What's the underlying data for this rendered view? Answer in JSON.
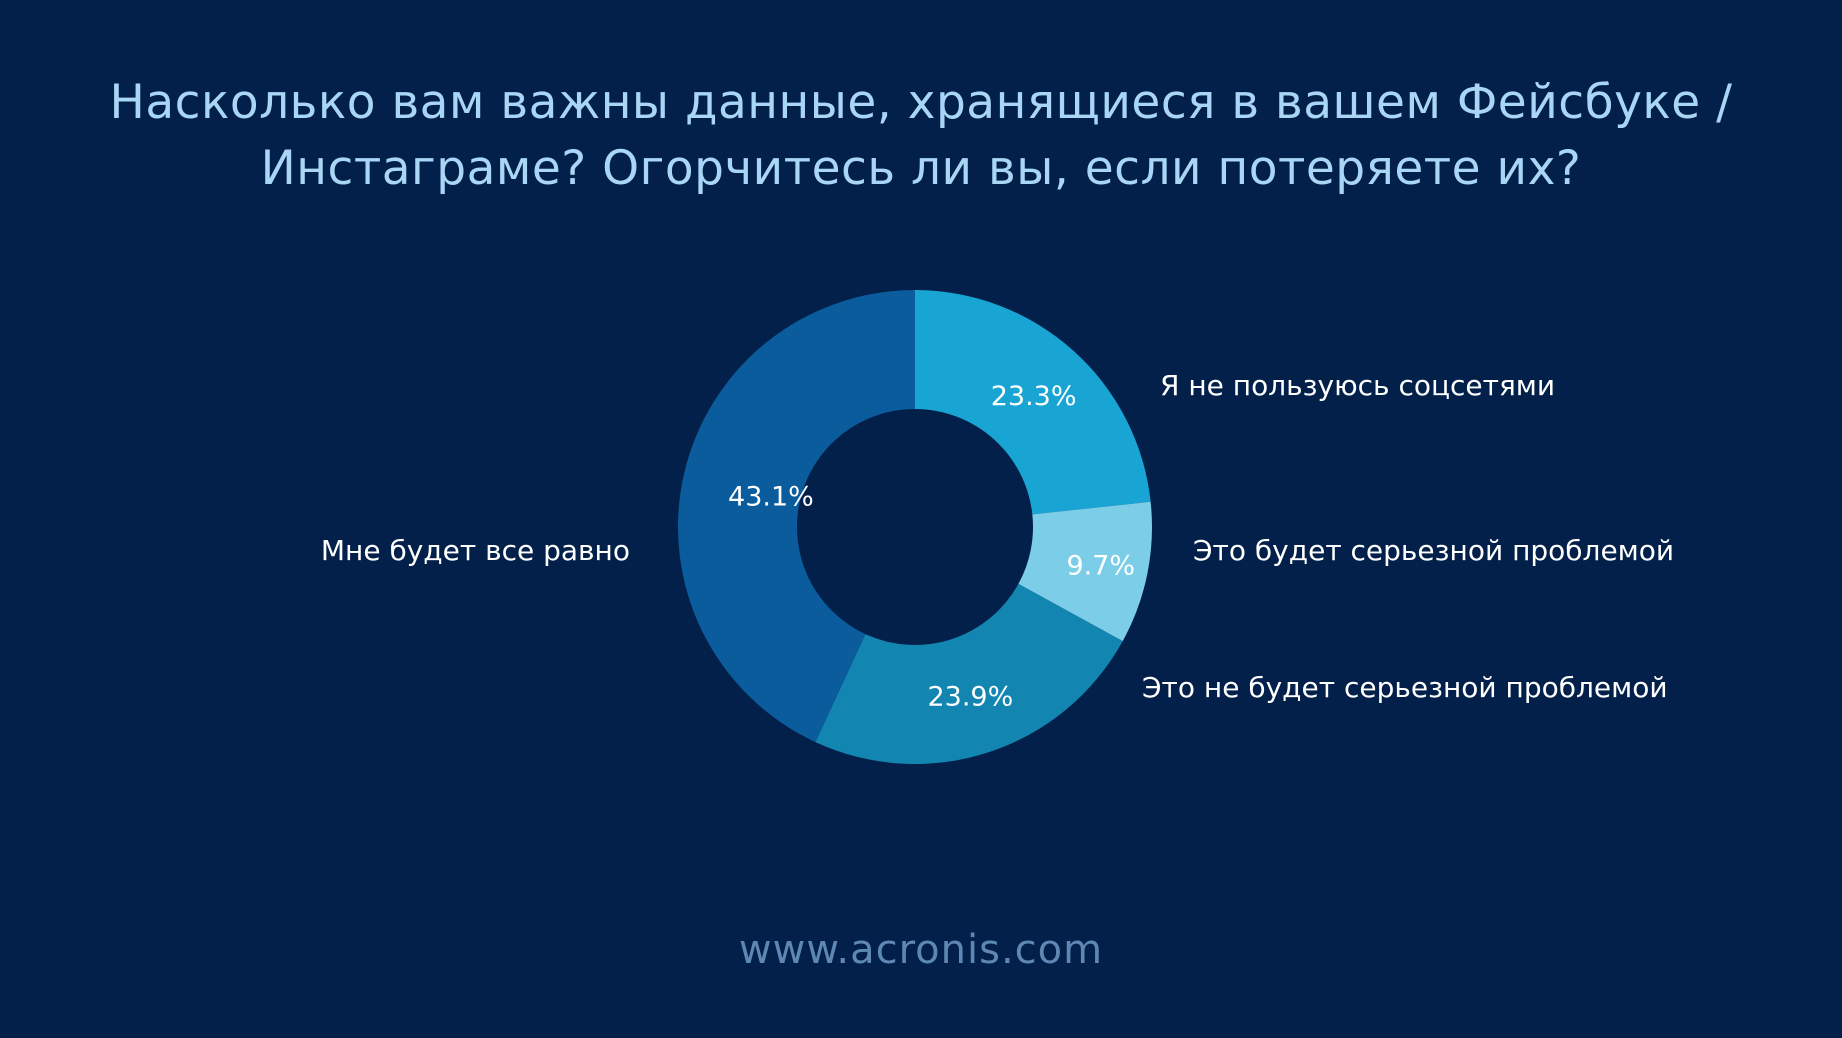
{
  "title_line1": "Насколько вам важны данные, хранящиеся в вашем Фейсбуке /",
  "title_line2": "Инстаграме? Огорчитесь ли вы, если потеряете их?",
  "footer": "www.acronis.com",
  "chart_data": {
    "type": "pie",
    "donut": true,
    "slices": [
      {
        "label": "Я не пользуюсь соцсетями",
        "value": 23.3,
        "value_label": "23.3%",
        "color": "#18a5d3"
      },
      {
        "label": "Это будет серьезной проблемой",
        "value": 9.7,
        "value_label": "9.7%",
        "color": "#7ccde8"
      },
      {
        "label": "Это не будет серьезной проблемой",
        "value": 23.9,
        "value_label": "23.9%",
        "color": "#1286b0"
      },
      {
        "label": "Мне будет все равно",
        "value": 43.1,
        "value_label": "43.1%",
        "color": "#0b5c9c"
      }
    ]
  }
}
